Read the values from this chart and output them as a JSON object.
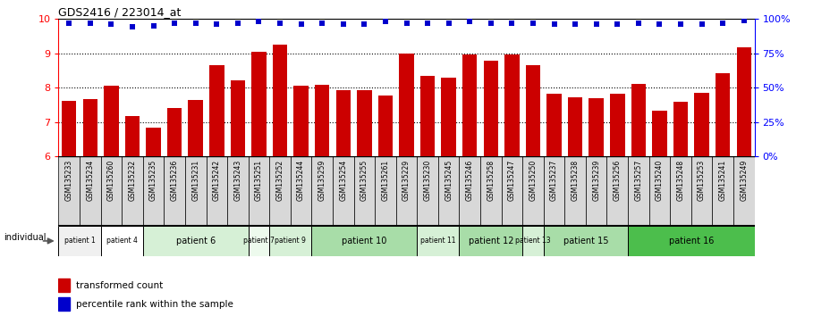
{
  "title": "GDS2416 / 223014_at",
  "samples": [
    "GSM135233",
    "GSM135234",
    "GSM135260",
    "GSM135232",
    "GSM135235",
    "GSM135236",
    "GSM135231",
    "GSM135242",
    "GSM135243",
    "GSM135251",
    "GSM135252",
    "GSM135244",
    "GSM135259",
    "GSM135254",
    "GSM135255",
    "GSM135261",
    "GSM135229",
    "GSM135230",
    "GSM135245",
    "GSM135246",
    "GSM135258",
    "GSM135247",
    "GSM135250",
    "GSM135237",
    "GSM135238",
    "GSM135239",
    "GSM135256",
    "GSM135257",
    "GSM135240",
    "GSM135248",
    "GSM135253",
    "GSM135241",
    "GSM135249"
  ],
  "bar_values": [
    7.62,
    7.68,
    8.05,
    7.17,
    6.85,
    7.42,
    7.63,
    8.65,
    8.22,
    9.05,
    9.25,
    8.05,
    8.08,
    7.92,
    7.92,
    7.77,
    8.99,
    8.35,
    8.3,
    8.97,
    8.78,
    8.97,
    8.65,
    7.82,
    7.72,
    7.7,
    7.82,
    8.12,
    7.33,
    7.58,
    7.85,
    8.42,
    9.18
  ],
  "percentile_values": [
    97,
    97,
    96,
    94,
    95,
    97,
    97,
    96,
    97,
    98,
    97,
    96,
    97,
    96,
    96,
    98,
    97,
    97,
    97,
    98,
    97,
    97,
    97,
    96,
    96,
    96,
    96,
    97,
    96,
    96,
    96,
    97,
    99
  ],
  "patient_groups": [
    {
      "label": "patient 1",
      "start": 0,
      "end": 2,
      "color": "#f0f0f0"
    },
    {
      "label": "patient 4",
      "start": 2,
      "end": 4,
      "color": "#ffffff"
    },
    {
      "label": "patient 6",
      "start": 4,
      "end": 9,
      "color": "#d6f0d6"
    },
    {
      "label": "patient 7",
      "start": 9,
      "end": 10,
      "color": "#edfaed"
    },
    {
      "label": "patient 9",
      "start": 10,
      "end": 12,
      "color": "#d6f0d6"
    },
    {
      "label": "patient 10",
      "start": 12,
      "end": 17,
      "color": "#a8dda8"
    },
    {
      "label": "patient 11",
      "start": 17,
      "end": 19,
      "color": "#d6f0d6"
    },
    {
      "label": "patient 12",
      "start": 19,
      "end": 22,
      "color": "#a8dda8"
    },
    {
      "label": "patient 13",
      "start": 22,
      "end": 23,
      "color": "#d6f0d6"
    },
    {
      "label": "patient 15",
      "start": 23,
      "end": 27,
      "color": "#a8dda8"
    },
    {
      "label": "patient 16",
      "start": 27,
      "end": 33,
      "color": "#4cbe4c"
    }
  ],
  "bar_color": "#cc0000",
  "dot_color": "#0000cc",
  "ylim_left": [
    6,
    10
  ],
  "ylim_right": [
    0,
    100
  ],
  "yticks_left": [
    6,
    7,
    8,
    9,
    10
  ],
  "yticks_right": [
    0,
    25,
    50,
    75,
    100
  ],
  "ytick_labels_right": [
    "0%",
    "25%",
    "50%",
    "75%",
    "100%"
  ],
  "grid_values": [
    7,
    8,
    9
  ],
  "legend_bar_label": "transformed count",
  "legend_dot_label": "percentile rank within the sample",
  "individual_label": "individual",
  "xlabel_row_color": "#d8d8d8",
  "sample_label_fontsize": 5.5
}
